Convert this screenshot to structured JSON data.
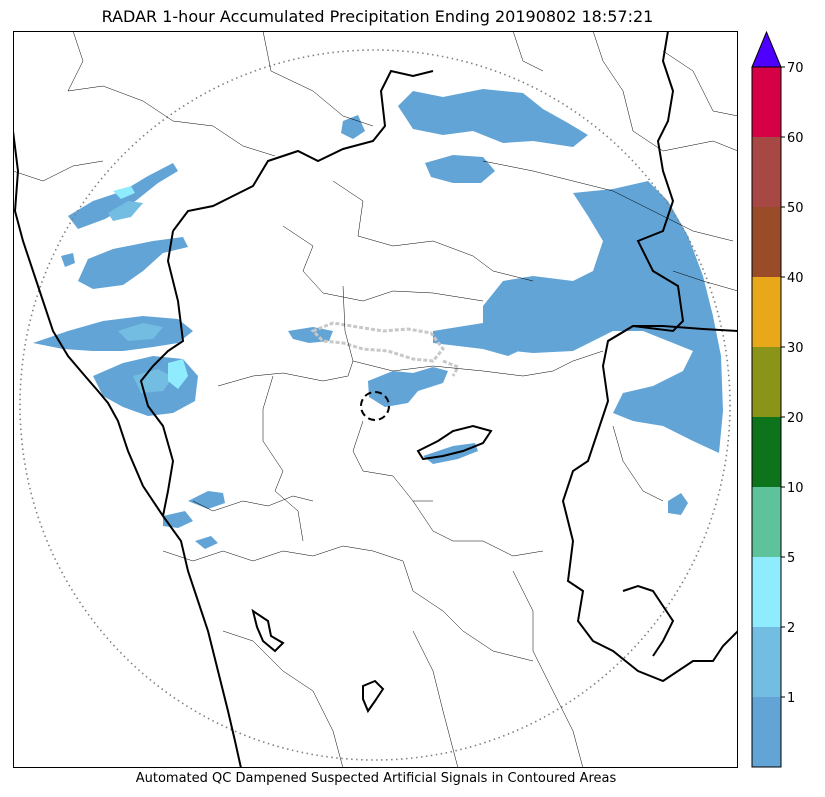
{
  "title": "RADAR 1-hour Accumulated Precipitation Ending 20190802 18:57:21",
  "footer": "Automated QC Dampened Suspected Artificial Signals in Contoured Areas",
  "colorbar": {
    "levels": [
      {
        "label": "",
        "color": "#62a4d6"
      },
      {
        "label": "1",
        "color": "#74bde2"
      },
      {
        "label": "2",
        "color": "#8fecfe"
      },
      {
        "label": "5",
        "color": "#5ec39b"
      },
      {
        "label": "10",
        "color": "#0d741c"
      },
      {
        "label": "20",
        "color": "#8a9418"
      },
      {
        "label": "30",
        "color": "#e8a81a"
      },
      {
        "label": "40",
        "color": "#9a4c28"
      },
      {
        "label": "50",
        "color": "#a84844"
      },
      {
        "label": "60",
        "color": "#d50046"
      }
    ],
    "top_label": "70",
    "extend_color": "#4e00ff"
  },
  "colors": {
    "precip": "#62a4d6",
    "precip_light": "#74bde2",
    "precip_cyan": "#8fecfe",
    "border": "#000000",
    "range_ring": "#808080"
  }
}
